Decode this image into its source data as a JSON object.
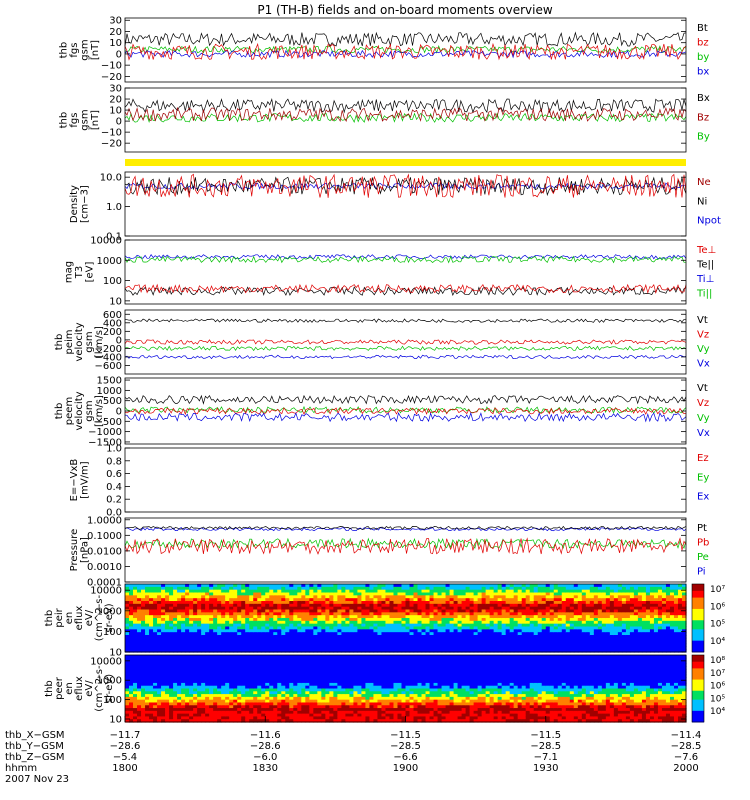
{
  "chart_data": {
    "type": "line",
    "title": "P1 (TH-B) fields and on-board moments overview",
    "panels": [
      {
        "id": "fgs-gsm",
        "ylabel": [
          "thb",
          "fgs",
          "gsm",
          "[nT]"
        ],
        "ylim": [
          -25,
          32
        ],
        "ticks": [
          "30",
          "20",
          "10",
          "0",
          "−10",
          "−20"
        ],
        "tick_values": [
          30,
          20,
          10,
          0,
          -10,
          -20
        ],
        "scale": "linear",
        "legend": [
          {
            "label": "Bt",
            "color": "#000000"
          },
          {
            "label": "bz",
            "color": "#e00000"
          },
          {
            "label": "by",
            "color": "#00c000"
          },
          {
            "label": "bx",
            "color": "#0000e0"
          }
        ],
        "series": [
          {
            "name": "Bt",
            "color": "#000000",
            "base": 13,
            "noise": 6
          },
          {
            "name": "by",
            "color": "#00c000",
            "base": 4,
            "noise": 3
          },
          {
            "name": "bx",
            "color": "#0000e0",
            "base": 0,
            "noise": 3
          },
          {
            "name": "bz",
            "color": "#e00000",
            "base": 2,
            "noise": 7
          }
        ]
      },
      {
        "id": "fgs-gsm-2",
        "ylabel": [
          "thb",
          "fgs",
          "gsm",
          "[nT]"
        ],
        "ylim": [
          -28,
          30
        ],
        "ticks": [
          "30",
          "20",
          "10",
          "0",
          "−10",
          "−20"
        ],
        "tick_values": [
          30,
          20,
          10,
          0,
          -10,
          -20
        ],
        "scale": "linear",
        "legend": [
          {
            "label": "Bx",
            "color": "#000000"
          },
          {
            "label": "Bz",
            "color": "#a00000"
          },
          {
            "label": "By",
            "color": "#00c000"
          }
        ],
        "series": [
          {
            "name": "Bx",
            "color": "#000000",
            "base": 14,
            "noise": 6
          },
          {
            "name": "By",
            "color": "#00c000",
            "base": 3,
            "noise": 4
          },
          {
            "name": "Bz",
            "color": "#a00000",
            "base": 6,
            "noise": 6
          }
        ]
      },
      {
        "id": "density",
        "ylabel": [
          "Density",
          "[cm−3]"
        ],
        "ylim": [
          0.1,
          15
        ],
        "ticks": [
          "10.0",
          "1.0",
          "0.1"
        ],
        "tick_values": [
          10,
          1,
          0.1
        ],
        "scale": "log",
        "legend": [
          {
            "label": "Ne",
            "color": "#a00000"
          },
          {
            "label": "Ni",
            "color": "#000000"
          },
          {
            "label": "Npot",
            "color": "#0000e0"
          }
        ],
        "series": [
          {
            "name": "Npot",
            "color": "#0000e0",
            "base": 5,
            "noise": 0.1
          },
          {
            "name": "Ni",
            "color": "#000000",
            "base": 5,
            "noise": 0.3
          },
          {
            "name": "Ne",
            "color": "#e00000",
            "base": 5,
            "noise": 0.4
          }
        ]
      },
      {
        "id": "temperature",
        "ylabel": [
          "mag",
          "T3",
          "[eV]"
        ],
        "ylim": [
          7,
          10000
        ],
        "ticks": [
          "10000",
          "1000",
          "100",
          "10"
        ],
        "tick_values": [
          10000,
          1000,
          100,
          10
        ],
        "scale": "log",
        "legend": [
          {
            "label": "Te⊥",
            "color": "#e00000"
          },
          {
            "label": "Te||",
            "color": "#000000"
          },
          {
            "label": "Ti⊥",
            "color": "#0000e0"
          },
          {
            "label": "Ti||",
            "color": "#00c000"
          }
        ],
        "series": [
          {
            "name": "Ti⊥",
            "color": "#0000e0",
            "base": 1500,
            "noise": 0.1
          },
          {
            "name": "Ti||",
            "color": "#00c000",
            "base": 1100,
            "noise": 0.15
          },
          {
            "name": "Te||",
            "color": "#000000",
            "base": 30,
            "noise": 0.2
          },
          {
            "name": "Te⊥",
            "color": "#e00000",
            "base": 40,
            "noise": 0.2
          }
        ]
      },
      {
        "id": "peim-velocity",
        "ylabel": [
          "thb",
          "peim",
          "velocity",
          "gsm",
          "[km/s]"
        ],
        "ylim": [
          -800,
          700
        ],
        "ticks": [
          "600",
          "400",
          "200",
          "0",
          "−200",
          "−400",
          "−600"
        ],
        "tick_values": [
          600,
          400,
          200,
          0,
          -200,
          -400,
          -600
        ],
        "scale": "linear",
        "legend": [
          {
            "label": "Vt",
            "color": "#000000"
          },
          {
            "label": "Vz",
            "color": "#e00000"
          },
          {
            "label": "Vy",
            "color": "#00c000"
          },
          {
            "label": "Vx",
            "color": "#0000e0"
          }
        ],
        "series": [
          {
            "name": "Vt",
            "color": "#000000",
            "base": 450,
            "noise": 40
          },
          {
            "name": "Vy",
            "color": "#00c000",
            "base": -200,
            "noise": 50
          },
          {
            "name": "Vz",
            "color": "#e00000",
            "base": -50,
            "noise": 50
          },
          {
            "name": "Vx",
            "color": "#0000e0",
            "base": -400,
            "noise": 40
          }
        ]
      },
      {
        "id": "peem-velocity",
        "ylabel": [
          "thb",
          "peem",
          "velocity",
          "gsm",
          "[km/s]"
        ],
        "ylim": [
          -1600,
          1600
        ],
        "ticks": [
          "1500",
          "1000",
          "500",
          "0",
          "−500",
          "−1000",
          "−1500"
        ],
        "tick_values": [
          1500,
          1000,
          500,
          0,
          -500,
          -1000,
          -1500
        ],
        "scale": "linear",
        "legend": [
          {
            "label": "Vt",
            "color": "#000000"
          },
          {
            "label": "Vz",
            "color": "#e00000"
          },
          {
            "label": "Vy",
            "color": "#00c000"
          },
          {
            "label": "Vx",
            "color": "#0000e0"
          }
        ],
        "series": [
          {
            "name": "Vt",
            "color": "#000000",
            "base": 550,
            "noise": 200
          },
          {
            "name": "Vy",
            "color": "#00c000",
            "base": 50,
            "noise": 150
          },
          {
            "name": "Vz",
            "color": "#e00000",
            "base": 0,
            "noise": 150
          },
          {
            "name": "Vx",
            "color": "#0000e0",
            "base": -300,
            "noise": 200
          }
        ]
      },
      {
        "id": "e-vxb",
        "ylabel": [
          "E=−VxB",
          "[mV/m]"
        ],
        "ylim": [
          0,
          1.0
        ],
        "ticks": [
          "1.0",
          "0.8",
          "0.6",
          "0.4",
          "0.2",
          "0.0"
        ],
        "tick_values": [
          1.0,
          0.8,
          0.6,
          0.4,
          0.2,
          0.0
        ],
        "scale": "linear",
        "legend": [
          {
            "label": "Ez",
            "color": "#e00000"
          },
          {
            "label": "Ey",
            "color": "#00c000"
          },
          {
            "label": "Ex",
            "color": "#0000e0"
          }
        ],
        "series": []
      },
      {
        "id": "pressure",
        "ylabel": [
          "Pressure",
          "[nPa]"
        ],
        "ylim": [
          0.0001,
          1.3
        ],
        "ticks": [
          "1.0000",
          "0.1000",
          "0.0100",
          "0.0010",
          "0.0001"
        ],
        "tick_values": [
          1,
          0.1,
          0.01,
          0.001,
          0.0001
        ],
        "scale": "log",
        "legend": [
          {
            "label": "Pt",
            "color": "#000000"
          },
          {
            "label": "Pb",
            "color": "#e00000"
          },
          {
            "label": "Pe",
            "color": "#00c000"
          },
          {
            "label": "Pi",
            "color": "#0000e0"
          }
        ],
        "series": [
          {
            "name": "Pi",
            "color": "#0000e0",
            "base": 0.25,
            "noise": 0.1
          },
          {
            "name": "Pt",
            "color": "#000000",
            "base": 0.3,
            "noise": 0.1
          },
          {
            "name": "Pe",
            "color": "#00c000",
            "base": 0.03,
            "noise": 0.3
          },
          {
            "name": "Pb",
            "color": "#e00000",
            "base": 0.02,
            "noise": 0.5
          }
        ]
      },
      {
        "id": "peir-spectrogram",
        "type": "heatmap",
        "ylabel": [
          "thb",
          "peir",
          "en",
          "eflux",
          "eV/",
          "(cm^2-s-",
          "sr-eV)"
        ],
        "ylim": [
          10,
          20000
        ],
        "ticks": [
          "10000",
          "1000",
          "100",
          "10"
        ],
        "tick_values": [
          10000,
          1000,
          100,
          10
        ],
        "scale": "log",
        "colorbar": {
          "ticks": [
            "10⁷",
            "10⁶",
            "10⁵",
            "10⁴"
          ]
        },
        "peak_energy_ev": 1500
      },
      {
        "id": "peer-spectrogram",
        "type": "heatmap",
        "ylabel": [
          "thb",
          "peer",
          "en",
          "eflux",
          "eV/",
          "(cm^2-s-",
          "sr-eV)"
        ],
        "ylim": [
          7,
          20000
        ],
        "ticks": [
          "10000",
          "1000",
          "100",
          "10"
        ],
        "tick_values": [
          10000,
          1000,
          100,
          10
        ],
        "scale": "log",
        "colorbar": {
          "ticks": [
            "10⁸",
            "10⁷",
            "10⁶",
            "10⁵",
            "10⁴"
          ]
        },
        "peak_energy_ev": 30
      }
    ],
    "x_axis": {
      "row_labels": [
        "thb_X−GSM",
        "thb_Y−GSM",
        "thb_Z−GSM",
        "hhmm",
        "2007 Nov 23"
      ],
      "ticks": [
        {
          "x": "−11.7",
          "y": "−28.6",
          "z": "−5.4",
          "t": "1800"
        },
        {
          "x": "−11.6",
          "y": "−28.6",
          "z": "−6.0",
          "t": "1830"
        },
        {
          "x": "−11.5",
          "y": "−28.5",
          "z": "−6.6",
          "t": "1900"
        },
        {
          "x": "−11.5",
          "y": "−28.5",
          "z": "−7.1",
          "t": "1930"
        },
        {
          "x": "−11.4",
          "y": "−28.5",
          "z": "−7.6",
          "t": "2000"
        }
      ]
    }
  }
}
